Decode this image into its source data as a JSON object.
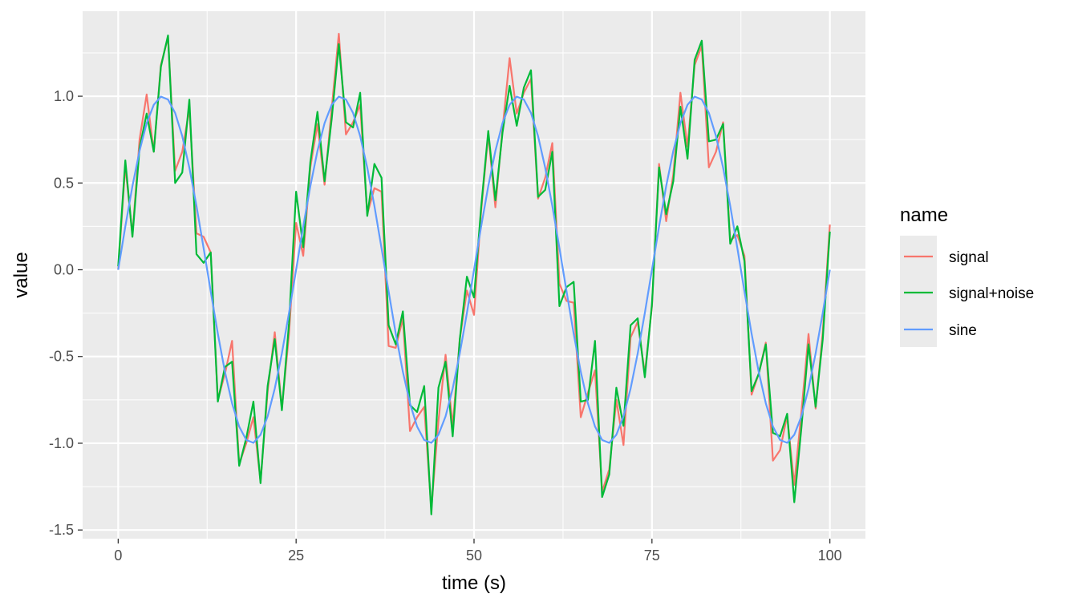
{
  "chart_data": {
    "type": "line",
    "xlabel": "time (s)",
    "ylabel": "value",
    "xlim": [
      -5,
      105
    ],
    "ylim": [
      -1.55,
      1.49
    ],
    "x_ticks": [
      0,
      25,
      50,
      75,
      100
    ],
    "x_tick_labels": [
      "0",
      "25",
      "50",
      "75",
      "100"
    ],
    "y_ticks": [
      -1.5,
      -1.0,
      -0.5,
      0.0,
      0.5,
      1.0
    ],
    "y_tick_labels": [
      "-1.5",
      "-1.0",
      "-0.5",
      "0.0",
      "0.5",
      "1.0"
    ],
    "grid": true,
    "legend": {
      "title": "name",
      "position": "right",
      "entries": [
        "signal",
        "signal+noise",
        "sine"
      ]
    },
    "series": [
      {
        "name": "signal",
        "color": "#F8766D",
        "x": [
          0,
          1,
          2,
          3,
          4,
          5,
          6,
          7,
          8,
          9,
          10,
          11,
          12,
          13,
          14,
          15,
          16,
          17,
          18,
          19,
          20,
          21,
          22,
          23,
          24,
          25,
          26,
          27,
          28,
          29,
          30,
          31,
          32,
          33,
          34,
          35,
          36,
          37,
          38,
          39,
          40,
          41,
          42,
          43,
          44,
          45,
          46,
          47,
          48,
          49,
          50,
          51,
          52,
          53,
          54,
          55,
          56,
          57,
          58,
          59,
          60,
          61,
          62,
          63,
          64,
          65,
          66,
          67,
          68,
          69,
          70,
          71,
          72,
          73,
          74,
          75,
          76,
          77,
          78,
          79,
          80,
          81,
          82,
          83,
          84,
          85,
          86,
          87,
          88,
          89,
          90,
          91,
          92,
          93,
          94,
          95,
          96,
          97,
          98,
          99,
          100
        ],
        "y": [
          0.0,
          0.6,
          0.2,
          0.75,
          1.01,
          0.68,
          1.18,
          1.34,
          0.57,
          0.68,
          0.93,
          0.21,
          0.19,
          0.1,
          -0.75,
          -0.6,
          -0.41,
          -1.12,
          -1.0,
          -0.85,
          -1.22,
          -0.7,
          -0.36,
          -0.8,
          -0.37,
          0.27,
          0.08,
          0.59,
          0.84,
          0.49,
          0.93,
          1.36,
          0.78,
          0.85,
          0.95,
          0.32,
          0.47,
          0.45,
          -0.44,
          -0.45,
          -0.28,
          -0.93,
          -0.85,
          -0.79,
          -1.38,
          -0.87,
          -0.49,
          -0.9,
          -0.4,
          -0.12,
          -0.26,
          0.34,
          0.78,
          0.36,
          0.81,
          1.22,
          0.9,
          1.02,
          1.1,
          0.41,
          0.53,
          0.73,
          -0.08,
          -0.18,
          -0.19,
          -0.85,
          -0.71,
          -0.58,
          -1.28,
          -1.15,
          -0.75,
          -1.01,
          -0.39,
          -0.3,
          -0.6,
          -0.21,
          0.61,
          0.28,
          0.55,
          1.02,
          0.71,
          1.18,
          1.29,
          0.59,
          0.68,
          0.85,
          0.17,
          0.2,
          0.08,
          -0.72,
          -0.6,
          -0.42,
          -1.1,
          -1.04,
          -0.84,
          -1.24,
          -0.82,
          -0.37,
          -0.8,
          -0.36,
          0.26
        ]
      },
      {
        "name": "signal+noise",
        "color": "#00BA38",
        "x": [
          0,
          1,
          2,
          3,
          4,
          5,
          6,
          7,
          8,
          9,
          10,
          11,
          12,
          13,
          14,
          15,
          16,
          17,
          18,
          19,
          20,
          21,
          22,
          23,
          24,
          25,
          26,
          27,
          28,
          29,
          30,
          31,
          32,
          33,
          34,
          35,
          36,
          37,
          38,
          39,
          40,
          41,
          42,
          43,
          44,
          45,
          46,
          47,
          48,
          49,
          50,
          51,
          52,
          53,
          54,
          55,
          56,
          57,
          58,
          59,
          60,
          61,
          62,
          63,
          64,
          65,
          66,
          67,
          68,
          69,
          70,
          71,
          72,
          73,
          74,
          75,
          76,
          77,
          78,
          79,
          80,
          81,
          82,
          83,
          84,
          85,
          86,
          87,
          88,
          89,
          90,
          91,
          92,
          93,
          94,
          95,
          96,
          97,
          98,
          99,
          100
        ],
        "y": [
          0.02,
          0.63,
          0.19,
          0.7,
          0.9,
          0.68,
          1.17,
          1.35,
          0.5,
          0.56,
          0.98,
          0.09,
          0.04,
          0.1,
          -0.76,
          -0.56,
          -0.53,
          -1.13,
          -0.97,
          -0.76,
          -1.23,
          -0.67,
          -0.4,
          -0.81,
          -0.31,
          0.45,
          0.13,
          0.62,
          0.91,
          0.51,
          0.87,
          1.3,
          0.85,
          0.82,
          1.02,
          0.31,
          0.61,
          0.53,
          -0.32,
          -0.43,
          -0.24,
          -0.78,
          -0.82,
          -0.67,
          -1.41,
          -0.68,
          -0.53,
          -0.96,
          -0.4,
          -0.04,
          -0.16,
          0.36,
          0.8,
          0.4,
          0.79,
          1.06,
          0.83,
          1.05,
          1.15,
          0.42,
          0.46,
          0.68,
          -0.21,
          -0.1,
          -0.07,
          -0.76,
          -0.75,
          -0.41,
          -1.31,
          -1.18,
          -0.68,
          -0.9,
          -0.32,
          -0.28,
          -0.62,
          -0.2,
          0.59,
          0.32,
          0.51,
          0.94,
          0.64,
          1.21,
          1.32,
          0.74,
          0.75,
          0.84,
          0.15,
          0.25,
          0.05,
          -0.7,
          -0.6,
          -0.43,
          -0.94,
          -0.96,
          -0.83,
          -1.34,
          -0.91,
          -0.43,
          -0.79,
          -0.4,
          0.22
        ]
      },
      {
        "name": "sine",
        "color": "#619CFF",
        "x": [
          0,
          1,
          2,
          3,
          4,
          5,
          6,
          7,
          8,
          9,
          10,
          11,
          12,
          13,
          14,
          15,
          16,
          17,
          18,
          19,
          20,
          21,
          22,
          23,
          24,
          25,
          26,
          27,
          28,
          29,
          30,
          31,
          32,
          33,
          34,
          35,
          36,
          37,
          38,
          39,
          40,
          41,
          42,
          43,
          44,
          45,
          46,
          47,
          48,
          49,
          50,
          51,
          52,
          53,
          54,
          55,
          56,
          57,
          58,
          59,
          60,
          61,
          62,
          63,
          64,
          65,
          66,
          67,
          68,
          69,
          70,
          71,
          72,
          73,
          74,
          75,
          76,
          77,
          78,
          79,
          80,
          81,
          82,
          83,
          84,
          85,
          86,
          87,
          88,
          89,
          90,
          91,
          92,
          93,
          94,
          95,
          96,
          97,
          98,
          99,
          100
        ],
        "y": [
          0.0,
          0.249,
          0.482,
          0.685,
          0.845,
          0.951,
          0.998,
          0.981,
          0.904,
          0.77,
          0.588,
          0.368,
          0.125,
          -0.125,
          -0.368,
          -0.588,
          -0.77,
          -0.904,
          -0.981,
          -0.998,
          -0.951,
          -0.845,
          -0.685,
          -0.482,
          -0.249,
          0.0,
          0.249,
          0.482,
          0.685,
          0.845,
          0.951,
          0.998,
          0.981,
          0.904,
          0.77,
          0.588,
          0.368,
          0.125,
          -0.125,
          -0.368,
          -0.588,
          -0.77,
          -0.904,
          -0.981,
          -0.998,
          -0.951,
          -0.845,
          -0.685,
          -0.482,
          -0.249,
          0.0,
          0.249,
          0.482,
          0.685,
          0.845,
          0.951,
          0.998,
          0.981,
          0.904,
          0.77,
          0.588,
          0.368,
          0.125,
          -0.125,
          -0.368,
          -0.588,
          -0.77,
          -0.904,
          -0.981,
          -0.998,
          -0.951,
          -0.845,
          -0.685,
          -0.482,
          -0.249,
          0.0,
          0.249,
          0.482,
          0.685,
          0.845,
          0.951,
          0.998,
          0.981,
          0.904,
          0.77,
          0.588,
          0.368,
          0.125,
          -0.125,
          -0.368,
          -0.588,
          -0.77,
          -0.904,
          -0.981,
          -0.998,
          -0.951,
          -0.845,
          -0.685,
          -0.482,
          -0.249,
          0.0
        ]
      }
    ]
  },
  "colors": {
    "panel_background": "#EBEBEB",
    "grid_major": "#FFFFFF",
    "tick_color": "#333333",
    "legend_key_background": "#EBEBEB"
  }
}
